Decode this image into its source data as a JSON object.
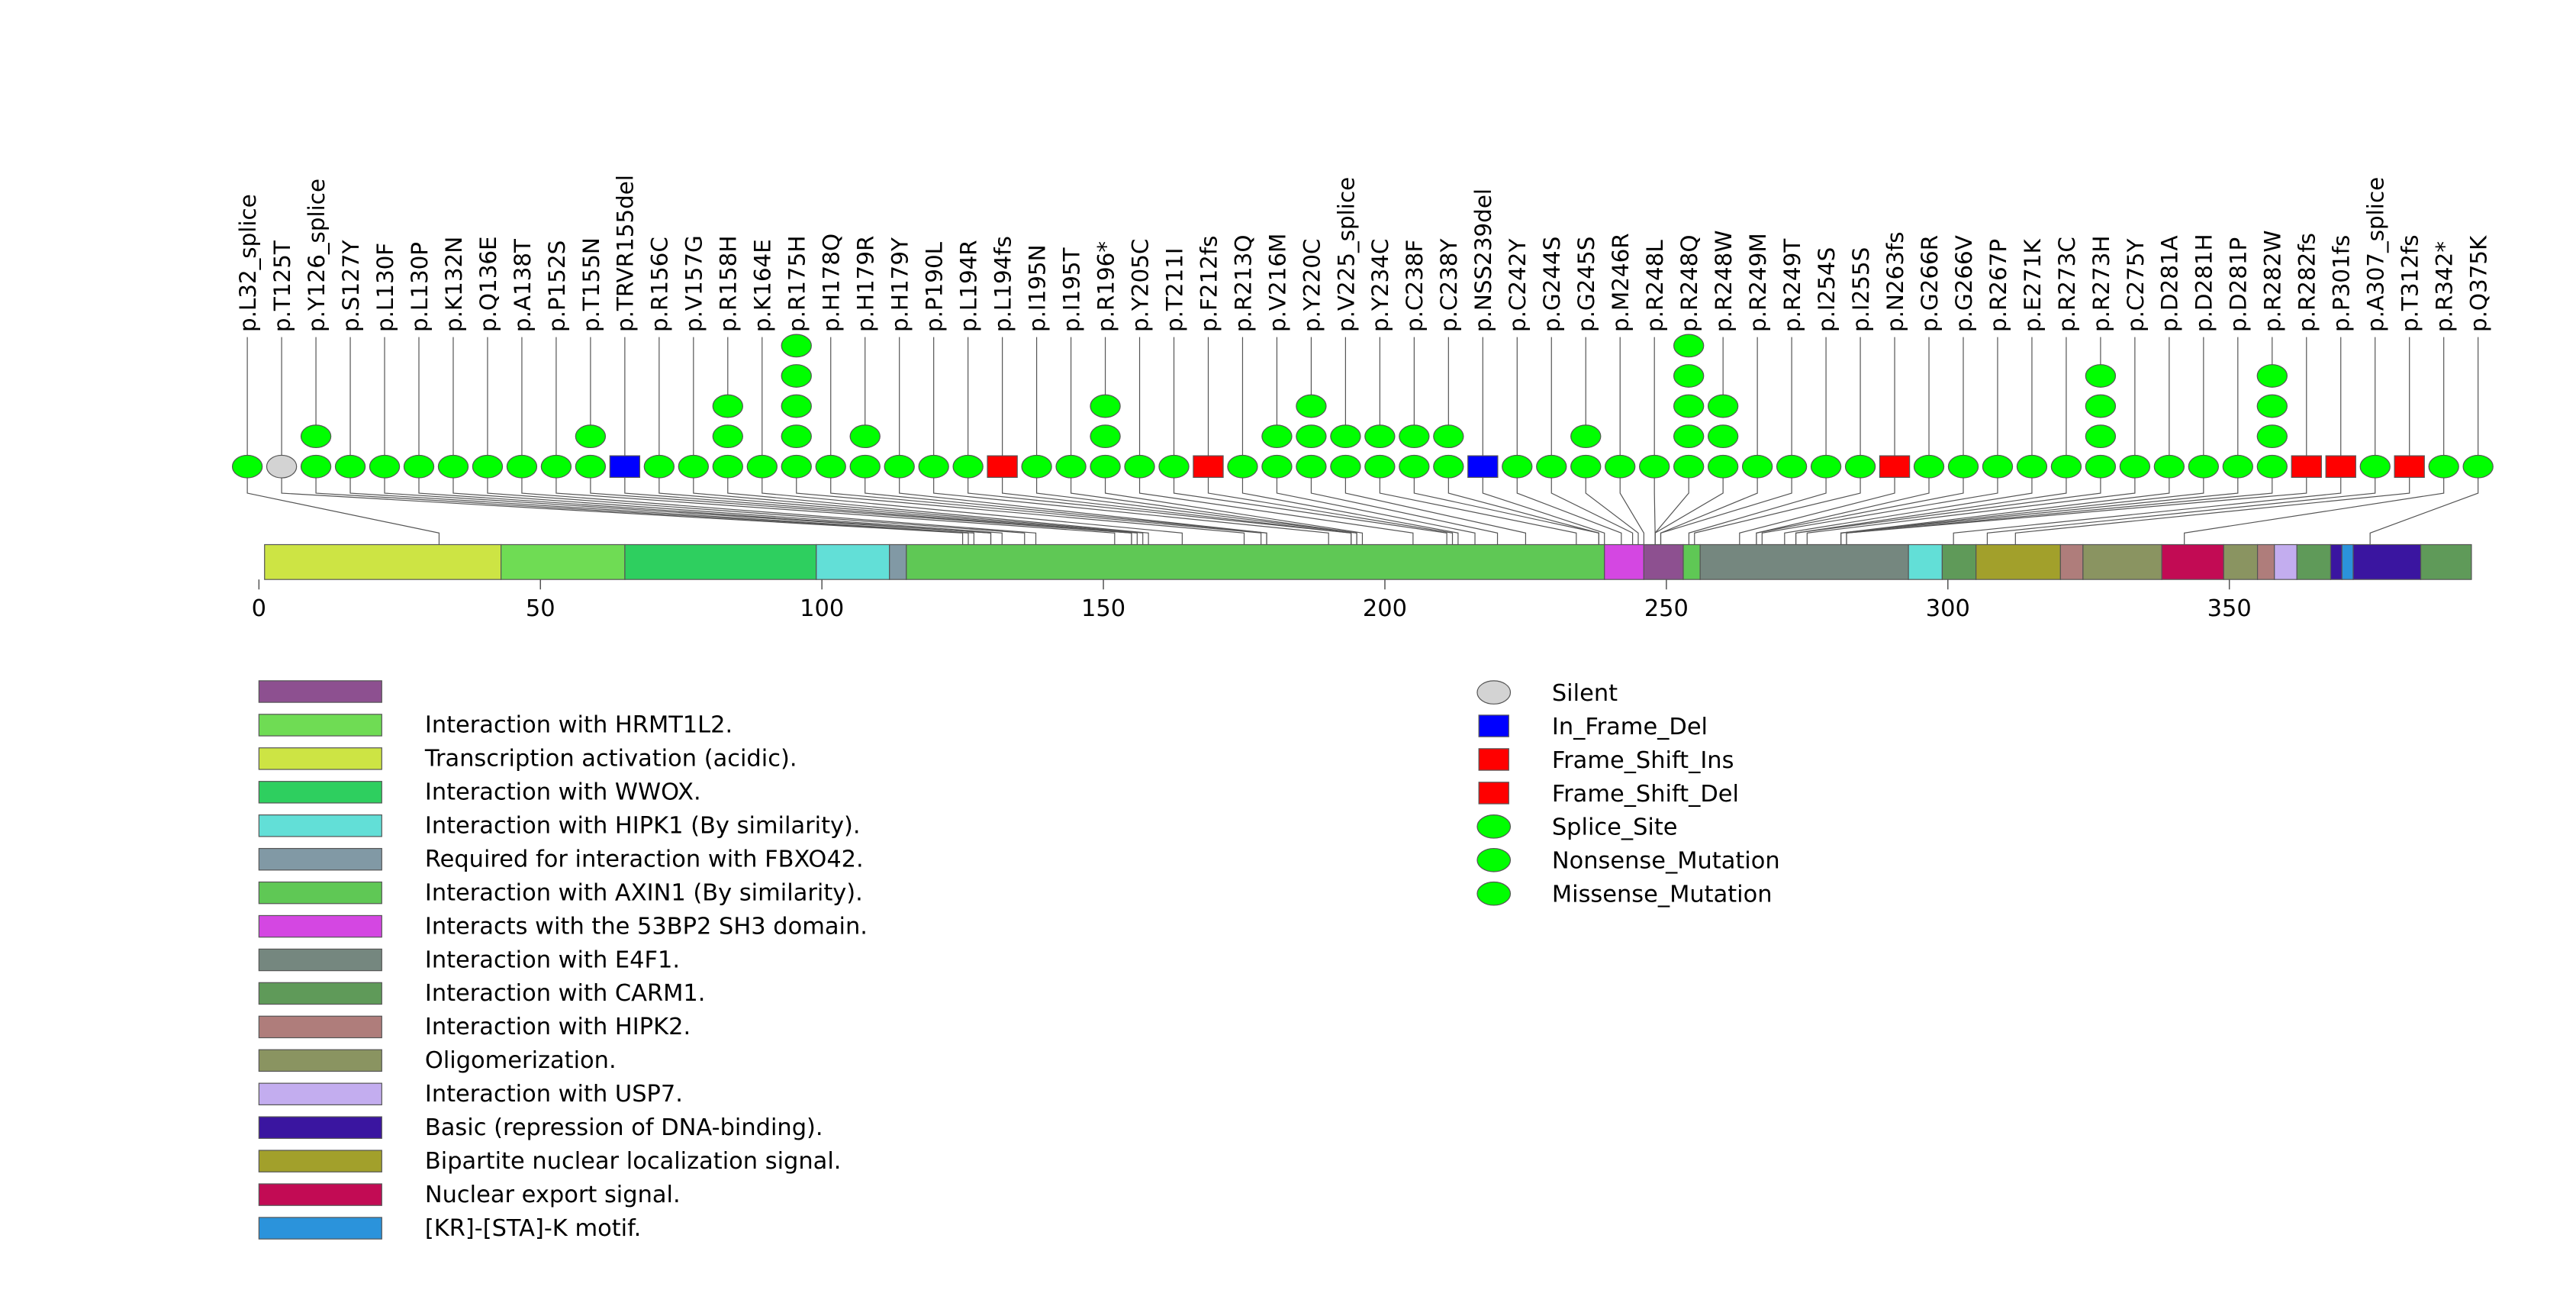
{
  "chart_data": {
    "type": "lollipop",
    "x_axis": {
      "min": 0,
      "max": 393,
      "ticks": [
        0,
        50,
        100,
        150,
        200,
        250,
        300,
        350
      ]
    },
    "domains": [
      {
        "name": "Transcription activation (acidic).",
        "start": 1,
        "end": 43,
        "color": "#cde444"
      },
      {
        "name": "Interaction with HRMT1L2.",
        "start": 43,
        "end": 65,
        "color": "#6fdc54"
      },
      {
        "name": "Interaction with WWOX.",
        "start": 65,
        "end": 99,
        "color": "#2ecf5f"
      },
      {
        "name": "Interaction with HIPK1 (By similarity).",
        "start": 99,
        "end": 112,
        "color": "#62dfd7"
      },
      {
        "name": "Required for interaction with FBXO42.",
        "start": 112,
        "end": 115,
        "color": "#8199a5"
      },
      {
        "name": "Interaction with AXIN1 (By similarity).",
        "start": 115,
        "end": 239,
        "color": "#5fc855"
      },
      {
        "name": "Interacts with the 53BP2 SH3 domain.",
        "start": 239,
        "end": 246,
        "color": "#d447e2"
      },
      {
        "name": "",
        "start": 246,
        "end": 253,
        "color": "#8d5090"
      },
      {
        "name": "Interaction with AXIN1 (By similarity).",
        "start": 253,
        "end": 256,
        "color": "#5fc855"
      },
      {
        "name": "Interaction with E4F1.",
        "start": 256,
        "end": 293,
        "color": "#75877f"
      },
      {
        "name": "Interaction with HIPK1 (By similarity).",
        "start": 293,
        "end": 299,
        "color": "#62dfd7"
      },
      {
        "name": "Interaction with CARM1.",
        "start": 299,
        "end": 305,
        "color": "#5f9a59"
      },
      {
        "name": "Bipartite nuclear localization signal.",
        "start": 305,
        "end": 320,
        "color": "#a2a02b"
      },
      {
        "name": "Interaction with HIPK2.",
        "start": 320,
        "end": 324,
        "color": "#af7d7b"
      },
      {
        "name": "Oligomerization.",
        "start": 324,
        "end": 338,
        "color": "#8a9461"
      },
      {
        "name": "Nuclear export signal.",
        "start": 338,
        "end": 349,
        "color": "#c20b54"
      },
      {
        "name": "Oligomerization.",
        "start": 349,
        "end": 355,
        "color": "#8a9461"
      },
      {
        "name": "Interaction with HIPK2.",
        "start": 355,
        "end": 358,
        "color": "#af7d7b"
      },
      {
        "name": "Interaction with USP7.",
        "start": 358,
        "end": 362,
        "color": "#c3adef"
      },
      {
        "name": "Interaction with CARM1.",
        "start": 362,
        "end": 368,
        "color": "#5f9a59"
      },
      {
        "name": "Basic (repression of DNA-binding).",
        "start": 368,
        "end": 370,
        "color": "#3a15a0"
      },
      {
        "name": "[KR]-[STA]-K motif.",
        "start": 370,
        "end": 372,
        "color": "#2b93db"
      },
      {
        "name": "Basic (repression of DNA-binding).",
        "start": 372,
        "end": 384,
        "color": "#3a15a0"
      },
      {
        "name": "Interaction with CARM1.",
        "start": 384,
        "end": 393,
        "color": "#5f9a59"
      }
    ],
    "mutations": [
      {
        "label": "p.L32_splice",
        "pos": 32,
        "count": 1,
        "type": "Splice_Site"
      },
      {
        "label": "p.T125T",
        "pos": 125,
        "count": 1,
        "type": "Silent"
      },
      {
        "label": "p.Y126_splice",
        "pos": 126,
        "count": 2,
        "type": "Splice_Site"
      },
      {
        "label": "p.S127Y",
        "pos": 127,
        "count": 1,
        "type": "Missense_Mutation"
      },
      {
        "label": "p.L130F",
        "pos": 130,
        "count": 1,
        "type": "Missense_Mutation"
      },
      {
        "label": "p.L130P",
        "pos": 130,
        "count": 1,
        "type": "Missense_Mutation"
      },
      {
        "label": "p.K132N",
        "pos": 132,
        "count": 1,
        "type": "Missense_Mutation"
      },
      {
        "label": "p.Q136E",
        "pos": 136,
        "count": 1,
        "type": "Missense_Mutation"
      },
      {
        "label": "p.A138T",
        "pos": 138,
        "count": 1,
        "type": "Missense_Mutation"
      },
      {
        "label": "p.P152S",
        "pos": 152,
        "count": 1,
        "type": "Missense_Mutation"
      },
      {
        "label": "p.T155N",
        "pos": 155,
        "count": 2,
        "type": "Missense_Mutation"
      },
      {
        "label": "p.TRVR155del",
        "pos": 155,
        "count": 1,
        "type": "In_Frame_Del"
      },
      {
        "label": "p.R156C",
        "pos": 156,
        "count": 1,
        "type": "Missense_Mutation"
      },
      {
        "label": "p.V157G",
        "pos": 157,
        "count": 1,
        "type": "Missense_Mutation"
      },
      {
        "label": "p.R158H",
        "pos": 158,
        "count": 3,
        "type": "Missense_Mutation"
      },
      {
        "label": "p.K164E",
        "pos": 164,
        "count": 1,
        "type": "Missense_Mutation"
      },
      {
        "label": "p.R175H",
        "pos": 175,
        "count": 5,
        "type": "Missense_Mutation"
      },
      {
        "label": "p.H178Q",
        "pos": 178,
        "count": 1,
        "type": "Missense_Mutation"
      },
      {
        "label": "p.H179R",
        "pos": 179,
        "count": 2,
        "type": "Missense_Mutation"
      },
      {
        "label": "p.H179Y",
        "pos": 179,
        "count": 1,
        "type": "Missense_Mutation"
      },
      {
        "label": "p.P190L",
        "pos": 190,
        "count": 1,
        "type": "Missense_Mutation"
      },
      {
        "label": "p.L194R",
        "pos": 194,
        "count": 1,
        "type": "Missense_Mutation"
      },
      {
        "label": "p.L194fs",
        "pos": 194,
        "count": 1,
        "type": "Frame_Shift_Del"
      },
      {
        "label": "p.I195N",
        "pos": 195,
        "count": 1,
        "type": "Missense_Mutation"
      },
      {
        "label": "p.I195T",
        "pos": 195,
        "count": 1,
        "type": "Missense_Mutation"
      },
      {
        "label": "p.R196*",
        "pos": 196,
        "count": 3,
        "type": "Nonsense_Mutation"
      },
      {
        "label": "p.Y205C",
        "pos": 205,
        "count": 1,
        "type": "Missense_Mutation"
      },
      {
        "label": "p.T211I",
        "pos": 211,
        "count": 1,
        "type": "Missense_Mutation"
      },
      {
        "label": "p.F212fs",
        "pos": 212,
        "count": 1,
        "type": "Frame_Shift_Del"
      },
      {
        "label": "p.R213Q",
        "pos": 213,
        "count": 1,
        "type": "Missense_Mutation"
      },
      {
        "label": "p.V216M",
        "pos": 216,
        "count": 2,
        "type": "Missense_Mutation"
      },
      {
        "label": "p.Y220C",
        "pos": 220,
        "count": 3,
        "type": "Missense_Mutation"
      },
      {
        "label": "p.V225_splice",
        "pos": 225,
        "count": 2,
        "type": "Splice_Site"
      },
      {
        "label": "p.Y234C",
        "pos": 234,
        "count": 2,
        "type": "Missense_Mutation"
      },
      {
        "label": "p.C238F",
        "pos": 238,
        "count": 2,
        "type": "Missense_Mutation"
      },
      {
        "label": "p.C238Y",
        "pos": 238,
        "count": 2,
        "type": "Missense_Mutation"
      },
      {
        "label": "p.NSS239del",
        "pos": 239,
        "count": 1,
        "type": "In_Frame_Del"
      },
      {
        "label": "p.C242Y",
        "pos": 242,
        "count": 1,
        "type": "Missense_Mutation"
      },
      {
        "label": "p.G244S",
        "pos": 244,
        "count": 1,
        "type": "Missense_Mutation"
      },
      {
        "label": "p.G245S",
        "pos": 245,
        "count": 2,
        "type": "Missense_Mutation"
      },
      {
        "label": "p.M246R",
        "pos": 246,
        "count": 1,
        "type": "Missense_Mutation"
      },
      {
        "label": "p.R248L",
        "pos": 248,
        "count": 1,
        "type": "Missense_Mutation"
      },
      {
        "label": "p.R248Q",
        "pos": 248,
        "count": 5,
        "type": "Missense_Mutation"
      },
      {
        "label": "p.R248W",
        "pos": 248,
        "count": 3,
        "type": "Missense_Mutation"
      },
      {
        "label": "p.R249M",
        "pos": 249,
        "count": 1,
        "type": "Missense_Mutation"
      },
      {
        "label": "p.R249T",
        "pos": 249,
        "count": 1,
        "type": "Missense_Mutation"
      },
      {
        "label": "p.I254S",
        "pos": 254,
        "count": 1,
        "type": "Missense_Mutation"
      },
      {
        "label": "p.I255S",
        "pos": 255,
        "count": 1,
        "type": "Missense_Mutation"
      },
      {
        "label": "p.N263fs",
        "pos": 263,
        "count": 1,
        "type": "Frame_Shift_Del"
      },
      {
        "label": "p.G266R",
        "pos": 266,
        "count": 1,
        "type": "Missense_Mutation"
      },
      {
        "label": "p.G266V",
        "pos": 266,
        "count": 1,
        "type": "Missense_Mutation"
      },
      {
        "label": "p.R267P",
        "pos": 267,
        "count": 1,
        "type": "Missense_Mutation"
      },
      {
        "label": "p.E271K",
        "pos": 271,
        "count": 1,
        "type": "Missense_Mutation"
      },
      {
        "label": "p.R273C",
        "pos": 273,
        "count": 1,
        "type": "Missense_Mutation"
      },
      {
        "label": "p.R273H",
        "pos": 273,
        "count": 4,
        "type": "Missense_Mutation"
      },
      {
        "label": "p.C275Y",
        "pos": 275,
        "count": 1,
        "type": "Missense_Mutation"
      },
      {
        "label": "p.D281A",
        "pos": 281,
        "count": 1,
        "type": "Missense_Mutation"
      },
      {
        "label": "p.D281H",
        "pos": 281,
        "count": 1,
        "type": "Missense_Mutation"
      },
      {
        "label": "p.D281P",
        "pos": 281,
        "count": 1,
        "type": "Missense_Mutation"
      },
      {
        "label": "p.R282W",
        "pos": 282,
        "count": 4,
        "type": "Missense_Mutation"
      },
      {
        "label": "p.R282fs",
        "pos": 282,
        "count": 1,
        "type": "Frame_Shift_Del"
      },
      {
        "label": "p.P301fs",
        "pos": 301,
        "count": 1,
        "type": "Frame_Shift_Del"
      },
      {
        "label": "p.A307_splice",
        "pos": 307,
        "count": 1,
        "type": "Splice_Site"
      },
      {
        "label": "p.T312fs",
        "pos": 312,
        "count": 1,
        "type": "Frame_Shift_Del"
      },
      {
        "label": "p.R342*",
        "pos": 342,
        "count": 1,
        "type": "Nonsense_Mutation"
      },
      {
        "label": "p.Q375K",
        "pos": 375,
        "count": 1,
        "type": "Missense_Mutation"
      }
    ],
    "domain_legend": [
      {
        "label": "",
        "color": "#8d5090"
      },
      {
        "label": "Interaction with HRMT1L2.",
        "color": "#6fdc54"
      },
      {
        "label": "Transcription activation (acidic).",
        "color": "#cde444"
      },
      {
        "label": "Interaction with WWOX.",
        "color": "#2ecf5f"
      },
      {
        "label": "Interaction with HIPK1 (By similarity).",
        "color": "#62dfd7"
      },
      {
        "label": "Required for interaction with FBXO42.",
        "color": "#8199a5"
      },
      {
        "label": "Interaction with AXIN1 (By similarity).",
        "color": "#5fc855"
      },
      {
        "label": "Interacts with the 53BP2 SH3 domain.",
        "color": "#d447e2"
      },
      {
        "label": "Interaction with E4F1.",
        "color": "#75877f"
      },
      {
        "label": "Interaction with CARM1.",
        "color": "#5f9a59"
      },
      {
        "label": "Interaction with HIPK2.",
        "color": "#af7d7b"
      },
      {
        "label": "Oligomerization.",
        "color": "#8a9461"
      },
      {
        "label": "Interaction with USP7.",
        "color": "#c3adef"
      },
      {
        "label": "Basic (repression of DNA-binding).",
        "color": "#3a15a0"
      },
      {
        "label": "Bipartite nuclear localization signal.",
        "color": "#a2a02b"
      },
      {
        "label": "Nuclear export signal.",
        "color": "#c20b54"
      },
      {
        "label": "[KR]-[STA]-K motif.",
        "color": "#2b93db"
      }
    ],
    "type_legend": [
      {
        "label": "Silent",
        "shape": "ellipse",
        "color": "#d3d3d3"
      },
      {
        "label": "In_Frame_Del",
        "shape": "rect",
        "color": "#0000ff"
      },
      {
        "label": "Frame_Shift_Ins",
        "shape": "rect",
        "color": "#ff0000"
      },
      {
        "label": "Frame_Shift_Del",
        "shape": "rect",
        "color": "#ff0000"
      },
      {
        "label": "Splice_Site",
        "shape": "ellipse",
        "color": "#00ff00"
      },
      {
        "label": "Nonsense_Mutation",
        "shape": "ellipse",
        "color": "#00ff00"
      },
      {
        "label": "Missense_Mutation",
        "shape": "ellipse",
        "color": "#00ff00"
      }
    ]
  }
}
